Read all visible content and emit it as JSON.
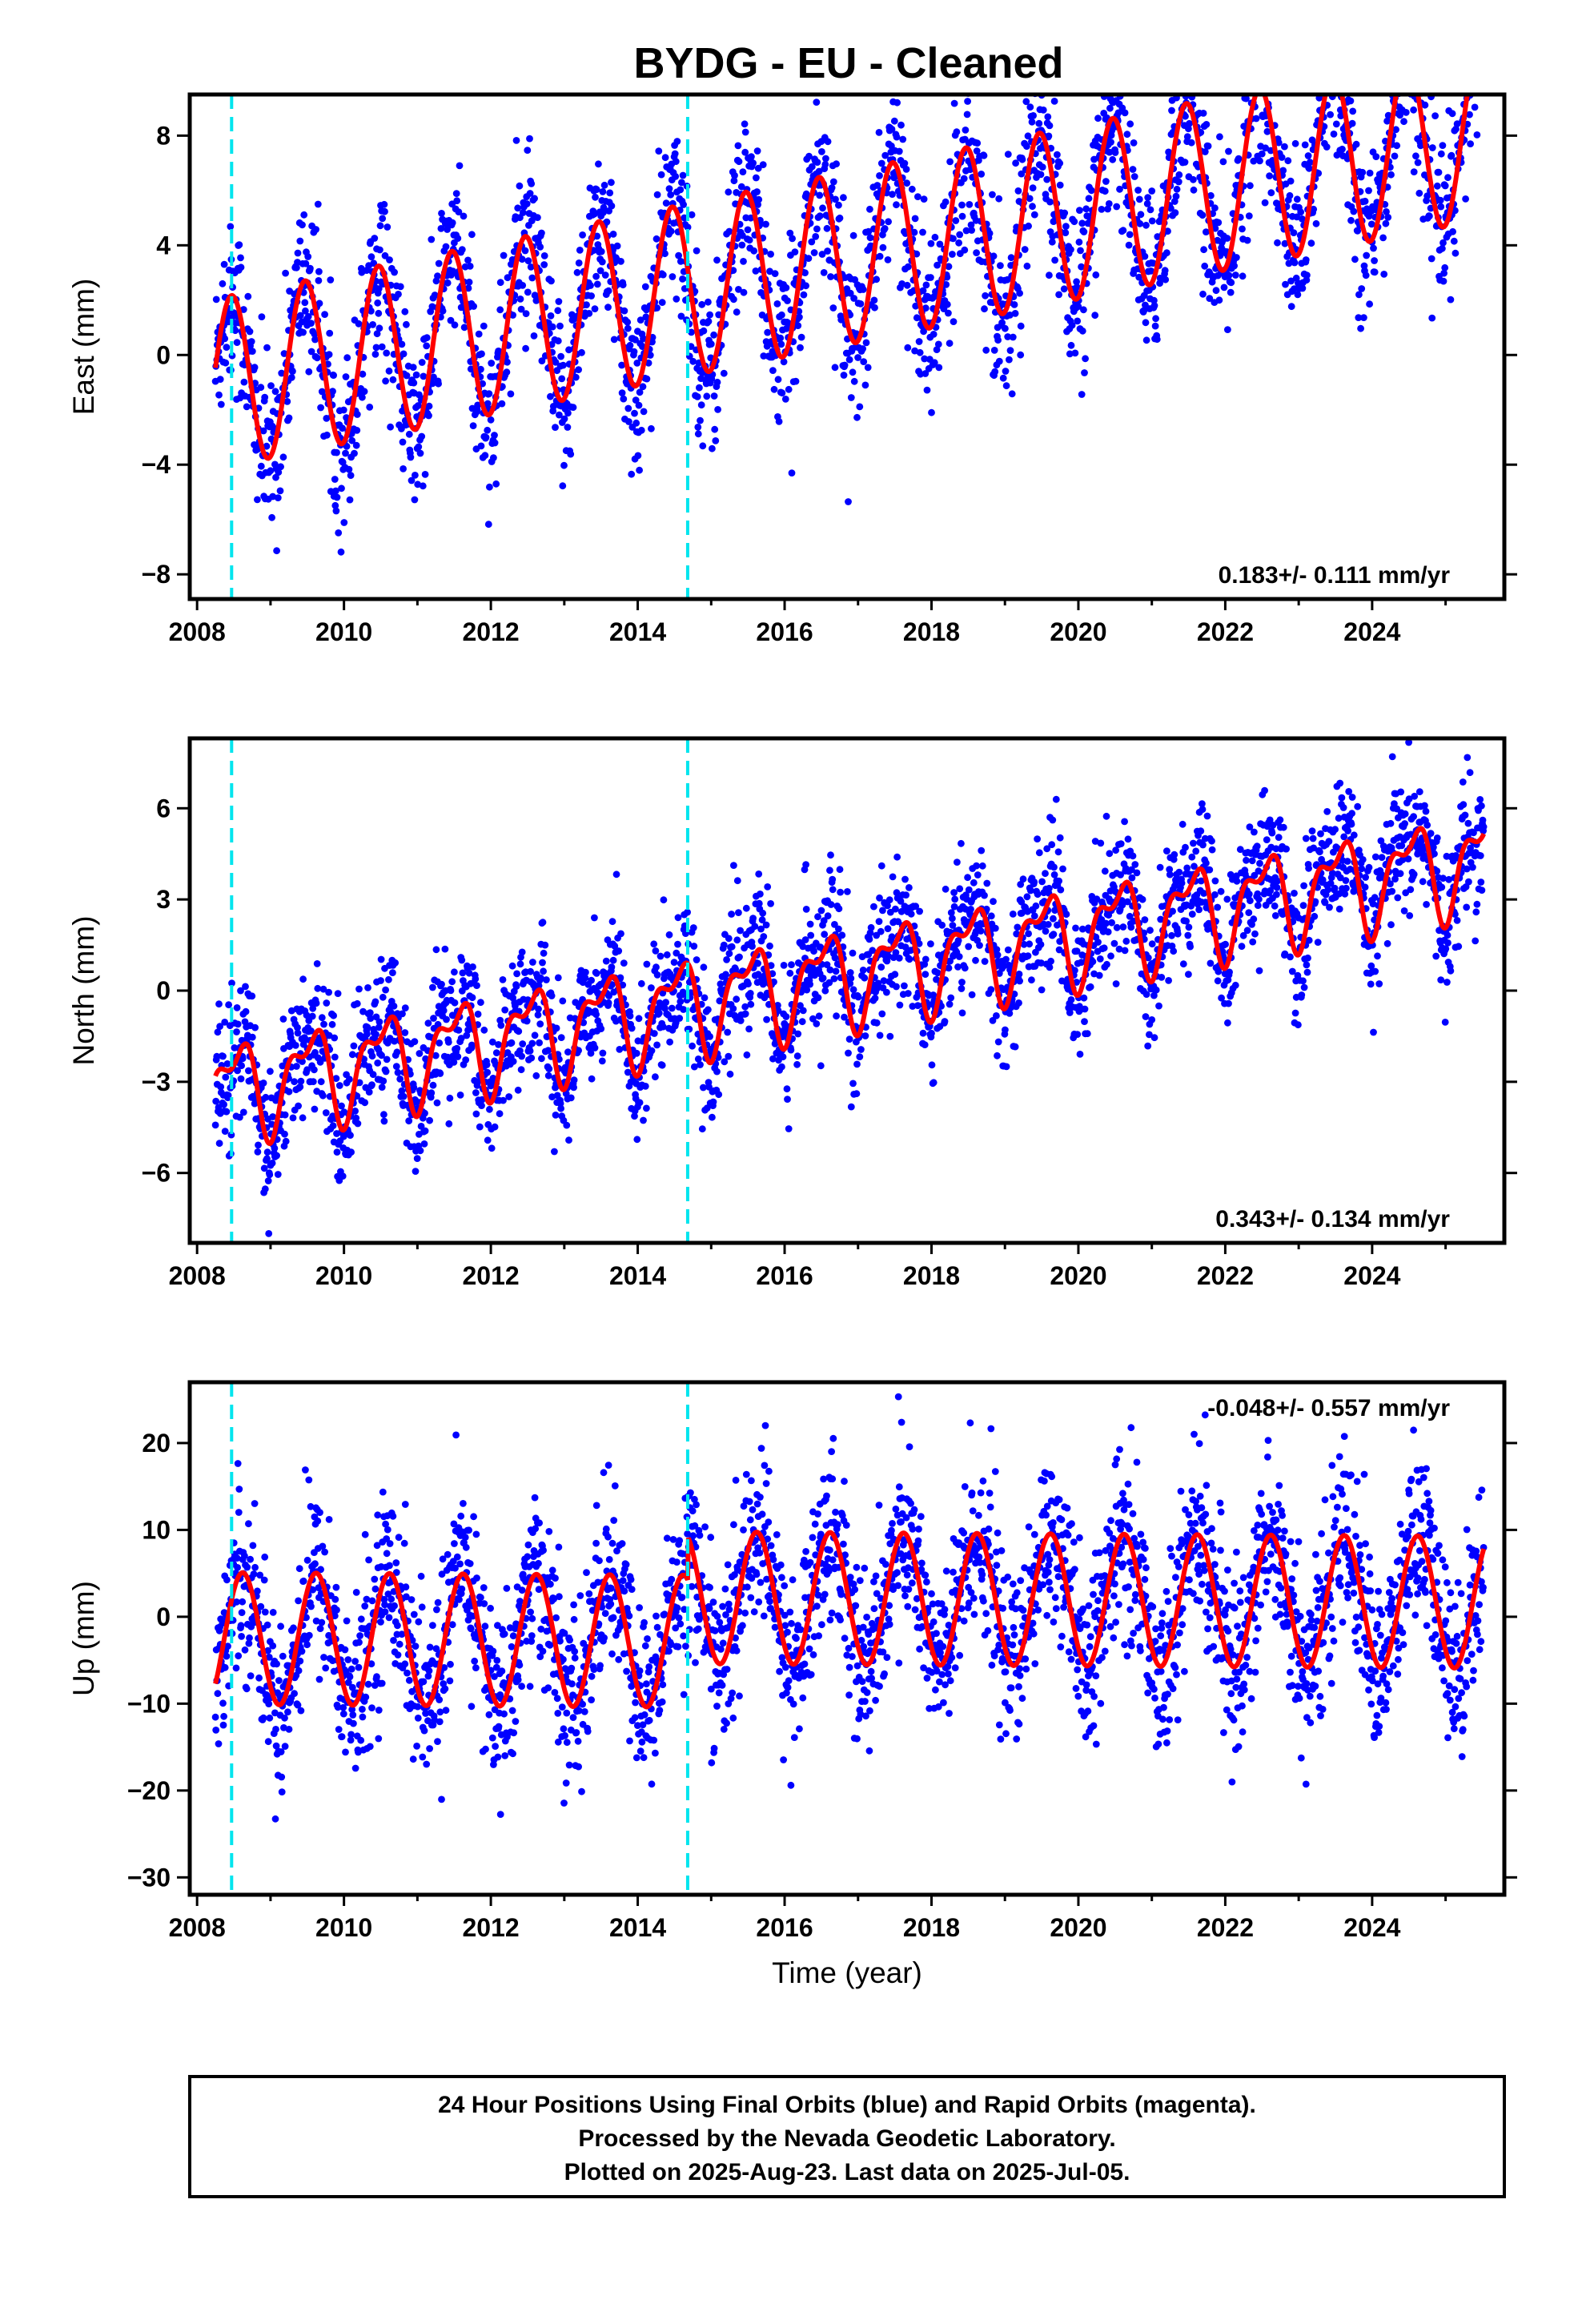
{
  "title": "BYDG  - EU - Cleaned",
  "chart_data": [
    {
      "type": "scatter",
      "id": "east",
      "ylabel": "East (mm)",
      "xlabel": "",
      "xlim": [
        2007.9,
        2025.8
      ],
      "ylim": [
        -8.9,
        9.5
      ],
      "yticks": [
        -8,
        -4,
        0,
        4,
        8
      ],
      "xticks": [
        2008,
        2010,
        2012,
        2014,
        2016,
        2018,
        2020,
        2022,
        2024
      ],
      "rate_label": "0.183+/- 0.111 mm/yr",
      "rate_position": "bottom-right",
      "breaks": [
        2008.47,
        2014.68
      ],
      "model": {
        "start": 2008.25,
        "end": 2025.52,
        "offset": -1.05,
        "trend": 0.183,
        "annual_amp_start": 3.1,
        "annual_amp_end": 3.2,
        "annual_phase": 0.47,
        "semiannual_amp": 0.0,
        "semiannual_phase": 0.0,
        "noise": 1.5
      },
      "series": [
        {
          "name": "Final Orbits",
          "color": "#0000ff",
          "kind": "points"
        },
        {
          "name": "Model",
          "color": "#ff0000",
          "kind": "line"
        }
      ]
    },
    {
      "type": "scatter",
      "id": "north",
      "ylabel": "North (mm)",
      "xlabel": "",
      "xlim": [
        2007.9,
        2025.8
      ],
      "ylim": [
        -8.3,
        8.3
      ],
      "yticks": [
        -6,
        -3,
        0,
        3,
        6
      ],
      "xticks": [
        2008,
        2010,
        2012,
        2014,
        2016,
        2018,
        2020,
        2022,
        2024
      ],
      "rate_label": "0.343+/- 0.134 mm/yr",
      "rate_position": "bottom-right",
      "breaks": [
        2008.47,
        2014.68
      ],
      "model": {
        "start": 2008.25,
        "end": 2025.52,
        "offset": -3.3,
        "trend": 0.343,
        "annual_amp_start": 1.4,
        "annual_amp_end": 1.4,
        "annual_phase": 0.52,
        "semiannual_amp": 0.7,
        "semiannual_phase": 0.1,
        "noise": 1.1
      },
      "series": [
        {
          "name": "Final Orbits",
          "color": "#0000ff",
          "kind": "points"
        },
        {
          "name": "Model",
          "color": "#ff0000",
          "kind": "line"
        }
      ]
    },
    {
      "type": "scatter",
      "id": "up",
      "ylabel": "Up (mm)",
      "xlabel": "Time (year)",
      "xlim": [
        2007.9,
        2025.8
      ],
      "ylim": [
        -32,
        27
      ],
      "yticks": [
        -30,
        -20,
        -10,
        0,
        10,
        20
      ],
      "xticks": [
        2008,
        2010,
        2012,
        2014,
        2016,
        2018,
        2020,
        2022,
        2024
      ],
      "rate_label": "-0.048+/- 0.557 mm/yr",
      "rate_position": "top-right",
      "breaks": [
        2008.47,
        2014.68
      ],
      "model": {
        "start": 2008.25,
        "end": 2025.52,
        "offset": -2.5,
        "trend": -0.048,
        "annual_amp_start": 7.6,
        "annual_amp_end": 7.6,
        "annual_phase": 0.62,
        "semiannual_amp": 0.0,
        "semiannual_phase": 0.0,
        "noise": 5.0,
        "late_shift": 5.0
      },
      "series": [
        {
          "name": "Final Orbits",
          "color": "#0000ff",
          "kind": "points"
        },
        {
          "name": "Model",
          "color": "#ff0000",
          "kind": "line"
        }
      ]
    }
  ],
  "colors": {
    "points": "#0000ff",
    "model": "#ff0000",
    "breaks": "#00e5ee",
    "frame": "#000000"
  },
  "footer": {
    "line1": "24 Hour Positions Using Final Orbits (blue) and Rapid Orbits (magenta).",
    "line2": "Processed by the Nevada Geodetic Laboratory.",
    "line3": "Plotted on 2025-Aug-23. Last data on 2025-Jul-05."
  }
}
